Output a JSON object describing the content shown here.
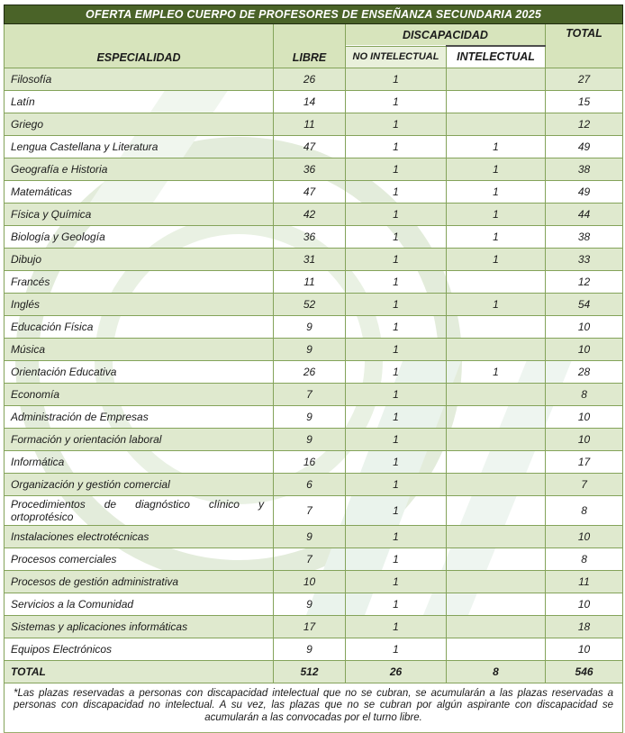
{
  "title": "OFERTA EMPLEO CUERPO DE PROFESORES DE ENSEÑANZA SECUNDARIA 2025",
  "header": {
    "especialidad": "ESPECIALIDAD",
    "libre": "LIBRE",
    "discapacidad": "DISCAPACIDAD",
    "no_intelectual": "NO INTELECTUAL",
    "intelectual": "INTELECTUAL",
    "total": "TOTAL"
  },
  "rows": [
    [
      "Filosofía",
      "26",
      "1",
      "",
      "27"
    ],
    [
      "Latín",
      "14",
      "1",
      "",
      "15"
    ],
    [
      "Griego",
      "11",
      "1",
      "",
      "12"
    ],
    [
      "Lengua Castellana y Literatura",
      "47",
      "1",
      "1",
      "49"
    ],
    [
      "Geografía e Historia",
      "36",
      "1",
      "1",
      "38"
    ],
    [
      "Matemáticas",
      "47",
      "1",
      "1",
      "49"
    ],
    [
      "Física y Química",
      "42",
      "1",
      "1",
      "44"
    ],
    [
      "Biología y Geología",
      "36",
      "1",
      "1",
      "38"
    ],
    [
      "Dibujo",
      "31",
      "1",
      "1",
      "33"
    ],
    [
      "Francés",
      "11",
      "1",
      "",
      "12"
    ],
    [
      "Inglés",
      "52",
      "1",
      "1",
      "54"
    ],
    [
      "Educación Física",
      "9",
      "1",
      "",
      "10"
    ],
    [
      "Música",
      "9",
      "1",
      "",
      "10"
    ],
    [
      "Orientación Educativa",
      "26",
      "1",
      "1",
      "28"
    ],
    [
      "Economía",
      "7",
      "1",
      "",
      "8"
    ],
    [
      "Administración de Empresas",
      "9",
      "1",
      "",
      "10"
    ],
    [
      "Formación y orientación laboral",
      "9",
      "1",
      "",
      "10"
    ],
    [
      "Informática",
      "16",
      "1",
      "",
      "17"
    ],
    [
      "Organización y gestión comercial",
      "6",
      "1",
      "",
      "7"
    ],
    [
      "Procedimientos de diagnóstico clínico y ortoprotésico",
      "7",
      "1",
      "",
      "8"
    ],
    [
      "Instalaciones electrotécnicas",
      "9",
      "1",
      "",
      "10"
    ],
    [
      "Procesos comerciales",
      "7",
      "1",
      "",
      "8"
    ],
    [
      "Procesos de gestión administrativa",
      "10",
      "1",
      "",
      "11"
    ],
    [
      "Servicios a la Comunidad",
      "9",
      "1",
      "",
      "10"
    ],
    [
      "Sistemas y aplicaciones informáticas",
      "17",
      "1",
      "",
      "18"
    ],
    [
      "Equipos Electrónicos",
      "9",
      "1",
      "",
      "10"
    ]
  ],
  "total_row": [
    "TOTAL",
    "512",
    "26",
    "8",
    "546"
  ],
  "footnote": "*Las plazas reservadas a personas con discapacidad intelectual que no se cubran, se acumularán a las plazas reservadas a personas con discapacidad no intelectual. A su vez, las plazas que no se cubran por algún aspirante con discapacidad se acumularán a las convocadas por el turno libre.",
  "colors": {
    "title_bg": "#4a6328",
    "header_green": "#d7e4bc",
    "row_green": "#dfe9ce",
    "border_green": "#84a35a"
  }
}
